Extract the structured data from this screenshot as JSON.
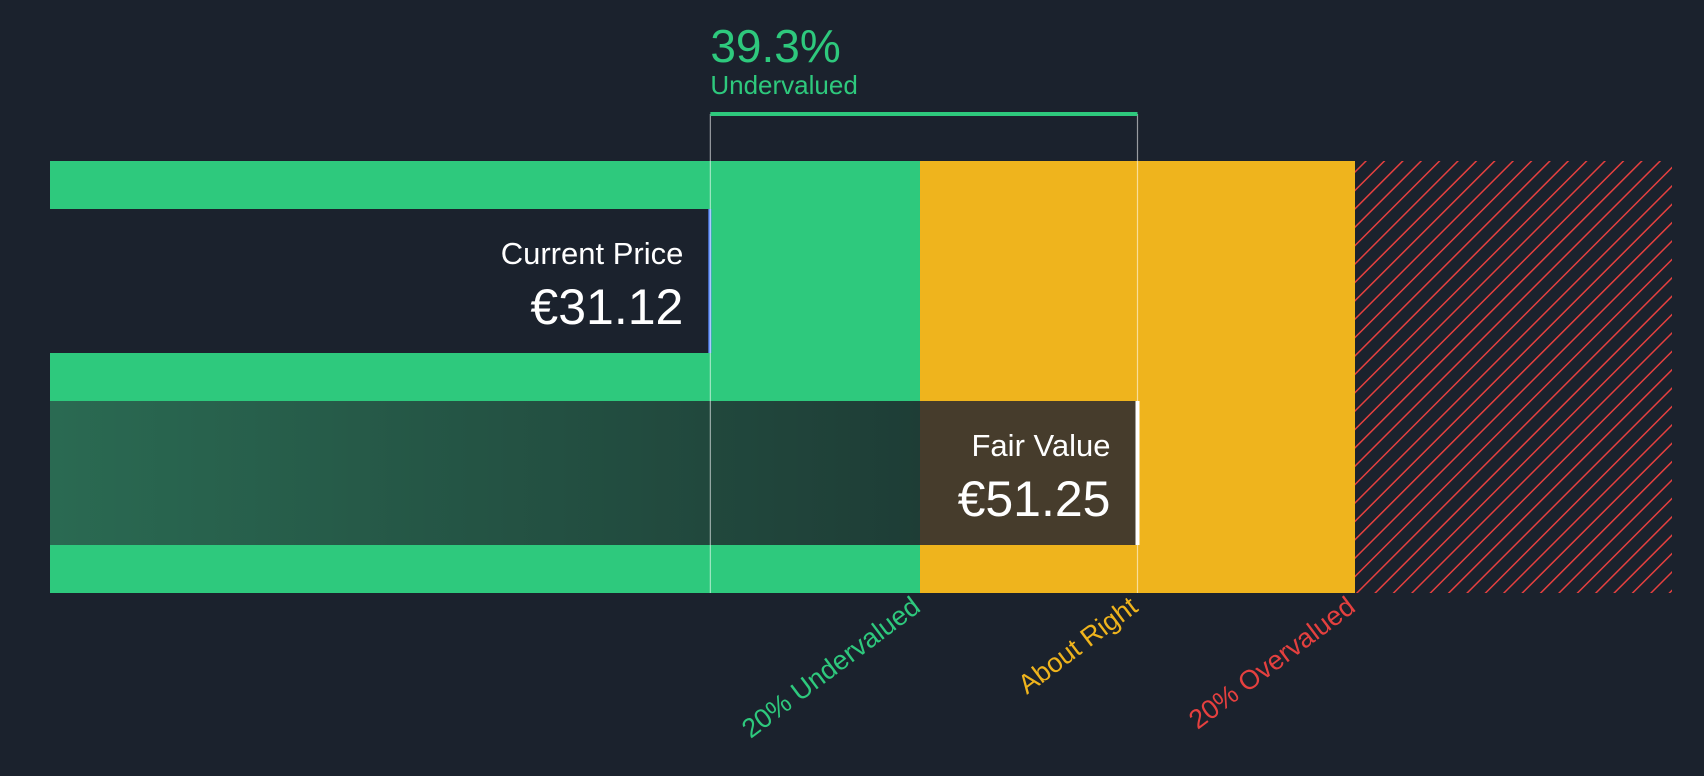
{
  "chart_data": {
    "type": "bar",
    "currency": "€",
    "current_price": {
      "label": "Current Price",
      "value": 31.12,
      "display": "€31.12"
    },
    "fair_value": {
      "label": "Fair Value",
      "value": 51.25,
      "display": "€51.25"
    },
    "discount": {
      "percent": 39.3,
      "display": "39.3%",
      "status": "Undervalued"
    },
    "zones": [
      {
        "name": "20% Undervalued",
        "color": "#2ec97d"
      },
      {
        "name": "About Right",
        "color": "#efb41d"
      },
      {
        "name": "20% Overvalued",
        "color": "#e5403f"
      }
    ],
    "zone_thresholds": [
      0.8,
      1.2
    ]
  },
  "colors": {
    "background": "#1b222d",
    "undervalued": "#2ec97d",
    "about_right": "#efb41d",
    "overvalued": "#e5403f",
    "price_marker": "#5b8cff",
    "fair_value_marker": "#ffffff"
  }
}
